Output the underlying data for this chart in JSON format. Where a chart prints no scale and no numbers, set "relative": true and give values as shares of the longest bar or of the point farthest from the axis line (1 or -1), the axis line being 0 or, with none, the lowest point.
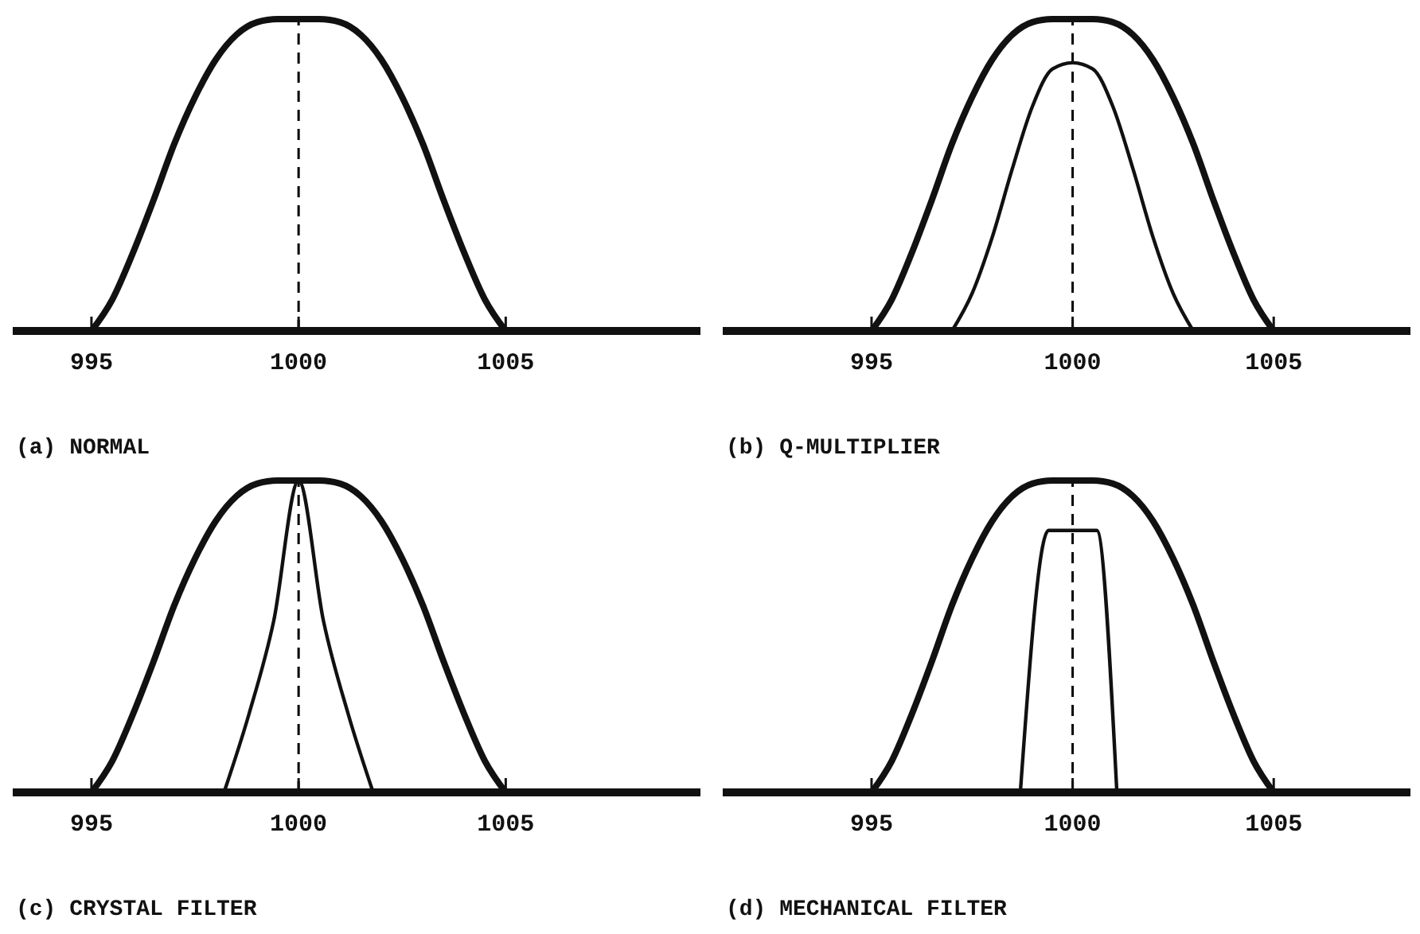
{
  "chart_data": [
    {
      "type": "line",
      "title": "(a) NORMAL",
      "relative": true,
      "xlim": [
        993.1,
        1009.7
      ],
      "xticks": [
        995,
        1000,
        1005
      ],
      "ref_lines": [
        {
          "axis": "x",
          "value": 1000,
          "line_style": "dashed",
          "color": "#000000"
        }
      ],
      "series": [
        {
          "color": "#111111",
          "x": [
            995,
            995.5,
            996,
            996.5,
            997,
            997.5,
            998,
            998.5,
            999,
            999.5,
            1000,
            1000.5,
            1001,
            1001.5,
            1002,
            1002.5,
            1003,
            1003.5,
            1004,
            1004.5,
            1005
          ],
          "values": [
            0,
            0.1,
            0.25,
            0.42,
            0.6,
            0.75,
            0.87,
            0.95,
            0.99,
            1,
            1,
            1,
            0.99,
            0.95,
            0.87,
            0.75,
            0.6,
            0.42,
            0.25,
            0.1,
            0
          ]
        }
      ]
    },
    {
      "type": "line",
      "title": "(b) Q-MULTIPLIER",
      "relative": true,
      "xlim": [
        991.3,
        1008.4
      ],
      "xticks": [
        995,
        1000,
        1005
      ],
      "ref_lines": [
        {
          "axis": "x",
          "value": 1000,
          "line_style": "dashed",
          "color": "#000000"
        }
      ],
      "series": [
        {
          "color": "#111111",
          "x": [
            995,
            995.5,
            996,
            996.5,
            997,
            997.5,
            998,
            998.5,
            999,
            999.5,
            1000,
            1000.5,
            1001,
            1001.5,
            1002,
            1002.5,
            1003,
            1003.5,
            1004,
            1004.5,
            1005
          ],
          "values": [
            0,
            0.1,
            0.25,
            0.42,
            0.6,
            0.75,
            0.87,
            0.95,
            0.99,
            1,
            1,
            1,
            0.99,
            0.95,
            0.87,
            0.75,
            0.6,
            0.42,
            0.25,
            0.1,
            0
          ]
        },
        {
          "color": "#111111",
          "x": [
            997,
            997.5,
            998,
            998.5,
            999,
            999.5,
            1000,
            1000.5,
            1001,
            1001.5,
            1002,
            1002.5,
            1003
          ],
          "values": [
            0,
            0.12,
            0.3,
            0.52,
            0.72,
            0.84,
            0.86,
            0.84,
            0.72,
            0.52,
            0.3,
            0.12,
            0
          ]
        }
      ]
    },
    {
      "type": "line",
      "title": "(c) CRYSTAL FILTER",
      "relative": true,
      "xlim": [
        993.1,
        1009.7
      ],
      "xticks": [
        995,
        1000,
        1005
      ],
      "ref_lines": [
        {
          "axis": "x",
          "value": 1000,
          "line_style": "dashed",
          "color": "#000000"
        }
      ],
      "series": [
        {
          "color": "#111111",
          "x": [
            995,
            995.5,
            996,
            996.5,
            997,
            997.5,
            998,
            998.5,
            999,
            999.5,
            1000,
            1000.5,
            1001,
            1001.5,
            1002,
            1002.5,
            1003,
            1003.5,
            1004,
            1004.5,
            1005
          ],
          "values": [
            0,
            0.1,
            0.25,
            0.42,
            0.6,
            0.75,
            0.87,
            0.95,
            0.99,
            1,
            1,
            1,
            0.99,
            0.95,
            0.87,
            0.75,
            0.6,
            0.42,
            0.25,
            0.1,
            0
          ]
        },
        {
          "color": "#111111",
          "x": [
            998.2,
            998.8,
            999.4,
            1000,
            1000.6,
            1001.2,
            1001.8
          ],
          "values": [
            0,
            0.25,
            0.55,
            1,
            0.55,
            0.25,
            0
          ]
        }
      ]
    },
    {
      "type": "line",
      "title": "(d) MECHANICAL FILTER",
      "relative": true,
      "xlim": [
        991.3,
        1008.4
      ],
      "xticks": [
        995,
        1000,
        1005
      ],
      "ref_lines": [
        {
          "axis": "x",
          "value": 1000,
          "line_style": "dashed",
          "color": "#000000"
        }
      ],
      "series": [
        {
          "color": "#111111",
          "x": [
            995,
            995.5,
            996,
            996.5,
            997,
            997.5,
            998,
            998.5,
            999,
            999.5,
            1000,
            1000.5,
            1001,
            1001.5,
            1002,
            1002.5,
            1003,
            1003.5,
            1004,
            1004.5,
            1005
          ],
          "values": [
            0,
            0.1,
            0.25,
            0.42,
            0.6,
            0.75,
            0.87,
            0.95,
            0.99,
            1,
            1,
            1,
            0.99,
            0.95,
            0.87,
            0.75,
            0.6,
            0.42,
            0.25,
            0.1,
            0
          ]
        },
        {
          "color": "#111111",
          "x": [
            998.7,
            999.4,
            1000.6,
            1001.1
          ],
          "values": [
            0,
            0.84,
            0.84,
            0
          ]
        }
      ]
    }
  ]
}
